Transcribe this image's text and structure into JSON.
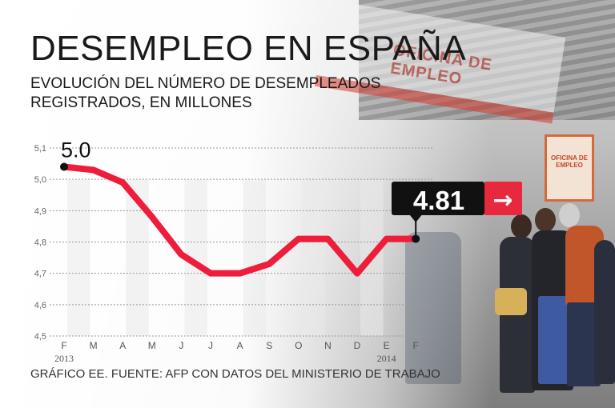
{
  "title": "DESEMPLEO EN ESPAÑA",
  "subtitle_line1": "EVOLUCIÓN DEL NÚMERO DE DESEMPLEADOS",
  "subtitle_line2": "REGISTRADOS, EN MILLONES",
  "footer": "GRÁFICO EE. FUENTE: AFP CON DATOS DEL MINISTERIO DE TRABAJO",
  "photo_sign": "OFICINA DE EMPLEO",
  "photo_side_sign": "OFICINA DE EMPLEO",
  "colors": {
    "line": "#ee1d3c",
    "marker": "#111111",
    "badge_bg": "#111111",
    "badge_arrow_bg": "#e8283c",
    "sign_red": "#d63a2f"
  },
  "chart_data": {
    "type": "line",
    "title": "EVOLUCIÓN DEL NÚMERO DE DESEMPLEADOS REGISTRADOS, EN MILLONES",
    "categories": [
      "F",
      "M",
      "A",
      "M",
      "J",
      "J",
      "A",
      "S",
      "O",
      "N",
      "D",
      "E",
      "F"
    ],
    "year_labels": [
      {
        "index": 0,
        "label": "2013"
      },
      {
        "index": 11,
        "label": "2014"
      }
    ],
    "values": [
      5.04,
      5.03,
      4.99,
      4.88,
      4.76,
      4.7,
      4.7,
      4.73,
      4.81,
      4.81,
      4.7,
      4.81,
      4.81
    ],
    "ylim": [
      4.5,
      5.1
    ],
    "yticks": [
      "4,5",
      "4,6",
      "4,7",
      "4,8",
      "4,9",
      "5,0",
      "5,1"
    ],
    "grid": true,
    "start_label": "5.0",
    "end_label": "4.81",
    "end_arrow": "→",
    "xlabel": "",
    "ylabel": ""
  }
}
